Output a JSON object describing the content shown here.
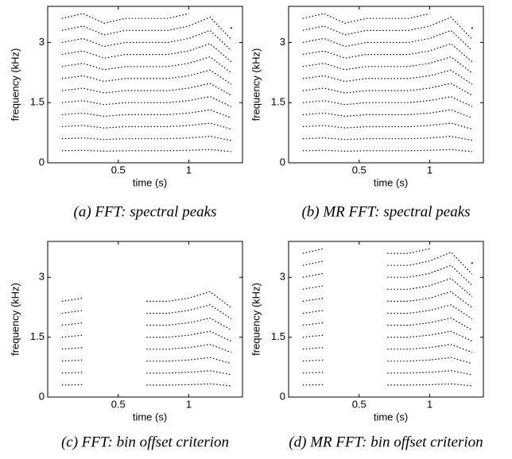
{
  "chart_data": [
    {
      "type": "line",
      "caption": "(a) FFT: spectral peaks",
      "x_label": "time (s)",
      "y_label": "frequency (kHz)",
      "color": "#000000",
      "line_style": "dotted",
      "x": [
        0.1,
        0.25,
        0.4,
        0.55,
        0.7,
        0.85,
        1.0,
        1.15,
        1.3
      ],
      "xlim": [
        0,
        1.38
      ],
      "ylim": [
        0,
        3.9
      ],
      "xticks": [
        0.5,
        1
      ],
      "yticks": [
        0,
        1.5,
        3
      ],
      "series": [
        {
          "values": [
            0.3,
            0.31,
            0.29,
            0.3,
            0.3,
            0.3,
            0.31,
            0.33,
            0.28
          ]
        },
        {
          "values": [
            0.6,
            0.62,
            0.58,
            0.6,
            0.6,
            0.6,
            0.62,
            0.66,
            0.56
          ]
        },
        {
          "values": [
            0.9,
            0.93,
            0.87,
            0.9,
            0.9,
            0.9,
            0.93,
            0.99,
            0.84
          ]
        },
        {
          "values": [
            1.2,
            1.24,
            1.16,
            1.2,
            1.2,
            1.2,
            1.24,
            1.32,
            1.12
          ]
        },
        {
          "values": [
            1.5,
            1.55,
            1.45,
            1.5,
            1.5,
            1.5,
            1.55,
            1.65,
            1.4
          ]
        },
        {
          "values": [
            1.8,
            1.86,
            1.74,
            1.8,
            1.8,
            1.8,
            1.86,
            1.98,
            1.68
          ]
        },
        {
          "values": [
            2.1,
            2.17,
            2.03,
            2.1,
            2.1,
            2.1,
            2.17,
            2.31,
            1.96
          ]
        },
        {
          "values": [
            2.4,
            2.48,
            2.32,
            2.4,
            2.4,
            2.4,
            2.48,
            2.64,
            2.24
          ]
        },
        {
          "values": [
            2.7,
            2.79,
            2.61,
            2.7,
            2.7,
            2.7,
            2.79,
            2.97,
            2.52
          ]
        },
        {
          "values": [
            3.0,
            3.1,
            2.9,
            3.0,
            3.0,
            3.0,
            3.1,
            3.3,
            2.8
          ]
        },
        {
          "values": [
            3.3,
            3.41,
            3.19,
            3.3,
            3.3,
            3.3,
            3.41,
            3.63,
            3.08
          ]
        },
        {
          "values": [
            3.6,
            3.72,
            3.48,
            3.6,
            3.6,
            3.6,
            3.72,
            null,
            3.36
          ]
        }
      ]
    },
    {
      "type": "line",
      "caption": "(b) MR FFT: spectral peaks",
      "x_label": "time (s)",
      "y_label": "frequency (kHz)",
      "color": "#000000",
      "line_style": "dotted",
      "x": [
        0.1,
        0.25,
        0.4,
        0.55,
        0.7,
        0.85,
        1.0,
        1.15,
        1.3
      ],
      "xlim": [
        0,
        1.38
      ],
      "ylim": [
        0,
        3.9
      ],
      "xticks": [
        0.5,
        1
      ],
      "yticks": [
        0,
        1.5,
        3
      ],
      "series": [
        {
          "values": [
            0.3,
            0.31,
            0.29,
            0.3,
            0.3,
            0.3,
            0.31,
            0.33,
            0.28
          ]
        },
        {
          "values": [
            0.6,
            0.62,
            0.58,
            0.6,
            0.6,
            0.6,
            0.62,
            0.66,
            0.56
          ]
        },
        {
          "values": [
            0.9,
            0.93,
            0.87,
            0.9,
            0.9,
            0.9,
            0.93,
            0.99,
            0.84
          ]
        },
        {
          "values": [
            1.2,
            1.24,
            1.16,
            1.2,
            1.2,
            1.2,
            1.24,
            1.32,
            1.12
          ]
        },
        {
          "values": [
            1.5,
            1.55,
            1.45,
            1.5,
            1.5,
            1.5,
            1.55,
            1.65,
            1.4
          ]
        },
        {
          "values": [
            1.8,
            1.86,
            1.74,
            1.8,
            1.8,
            1.8,
            1.86,
            1.98,
            1.68
          ]
        },
        {
          "values": [
            2.1,
            2.17,
            2.03,
            2.1,
            2.1,
            2.1,
            2.17,
            2.31,
            1.96
          ]
        },
        {
          "values": [
            2.4,
            2.48,
            2.32,
            2.4,
            2.4,
            2.4,
            2.48,
            2.64,
            2.24
          ]
        },
        {
          "values": [
            2.7,
            2.79,
            2.61,
            2.7,
            2.7,
            2.7,
            2.79,
            2.97,
            2.52
          ]
        },
        {
          "values": [
            3.0,
            3.1,
            2.9,
            3.0,
            3.0,
            3.0,
            3.1,
            3.3,
            2.8
          ]
        },
        {
          "values": [
            3.3,
            3.41,
            3.19,
            3.3,
            3.3,
            3.3,
            3.41,
            3.63,
            3.08
          ]
        },
        {
          "values": [
            3.6,
            3.72,
            3.48,
            3.6,
            3.6,
            3.6,
            3.72,
            null,
            3.36
          ]
        }
      ]
    },
    {
      "type": "line",
      "caption": "(c) FFT: bin offset criterion",
      "x_label": "time (s)",
      "y_label": "frequency (kHz)",
      "color": "#000000",
      "line_style": "dotted",
      "x": [
        0.1,
        0.25,
        0.4,
        0.55,
        0.7,
        0.85,
        1.0,
        1.15,
        1.3
      ],
      "xlim": [
        0,
        1.38
      ],
      "ylim": [
        0,
        3.9
      ],
      "xticks": [
        0.5,
        1
      ],
      "yticks": [
        0,
        1.5,
        3
      ],
      "series": [
        {
          "values": [
            0.3,
            0.31,
            null,
            null,
            0.3,
            0.3,
            0.31,
            0.33,
            0.28
          ]
        },
        {
          "values": [
            0.6,
            0.62,
            null,
            null,
            0.6,
            0.6,
            0.62,
            0.66,
            0.56
          ]
        },
        {
          "values": [
            0.9,
            0.93,
            null,
            null,
            0.9,
            0.9,
            0.93,
            0.99,
            0.84
          ]
        },
        {
          "values": [
            1.2,
            1.24,
            null,
            null,
            1.2,
            1.2,
            1.24,
            1.32,
            1.12
          ]
        },
        {
          "values": [
            1.5,
            1.55,
            null,
            null,
            1.5,
            1.5,
            1.55,
            1.65,
            1.4
          ]
        },
        {
          "values": [
            1.8,
            1.86,
            null,
            null,
            1.8,
            1.8,
            1.86,
            1.98,
            1.68
          ]
        },
        {
          "values": [
            2.1,
            2.17,
            null,
            null,
            2.1,
            2.1,
            2.17,
            2.31,
            1.96
          ]
        },
        {
          "values": [
            2.4,
            2.48,
            null,
            null,
            2.4,
            2.4,
            2.48,
            2.64,
            2.24
          ]
        }
      ]
    },
    {
      "type": "line",
      "caption": "(d) MR FFT: bin offset criterion",
      "x_label": "time (s)",
      "y_label": "frequency (kHz)",
      "color": "#000000",
      "line_style": "dotted",
      "x": [
        0.1,
        0.25,
        0.4,
        0.55,
        0.7,
        0.85,
        1.0,
        1.15,
        1.3
      ],
      "xlim": [
        0,
        1.38
      ],
      "ylim": [
        0,
        3.9
      ],
      "xticks": [
        0.5,
        1
      ],
      "yticks": [
        0,
        1.5,
        3
      ],
      "series": [
        {
          "values": [
            0.3,
            0.31,
            null,
            null,
            0.3,
            0.3,
            0.31,
            0.33,
            0.28
          ]
        },
        {
          "values": [
            0.6,
            0.62,
            null,
            null,
            0.6,
            0.6,
            0.62,
            0.66,
            0.56
          ]
        },
        {
          "values": [
            0.9,
            0.93,
            null,
            null,
            0.9,
            0.9,
            0.93,
            0.99,
            0.84
          ]
        },
        {
          "values": [
            1.2,
            1.24,
            null,
            null,
            1.2,
            1.2,
            1.24,
            1.32,
            1.12
          ]
        },
        {
          "values": [
            1.5,
            1.55,
            null,
            null,
            1.5,
            1.5,
            1.55,
            1.65,
            1.4
          ]
        },
        {
          "values": [
            1.8,
            1.86,
            null,
            null,
            1.8,
            1.8,
            1.86,
            1.98,
            1.68
          ]
        },
        {
          "values": [
            2.1,
            2.17,
            null,
            null,
            2.1,
            2.1,
            2.17,
            2.31,
            1.96
          ]
        },
        {
          "values": [
            2.4,
            2.48,
            null,
            null,
            2.4,
            2.4,
            2.48,
            2.64,
            2.24
          ]
        },
        {
          "values": [
            2.7,
            2.79,
            null,
            null,
            2.7,
            2.7,
            2.79,
            2.97,
            2.52
          ]
        },
        {
          "values": [
            3.0,
            3.1,
            null,
            null,
            3.0,
            3.0,
            3.1,
            3.3,
            2.8
          ]
        },
        {
          "values": [
            3.3,
            3.41,
            null,
            null,
            3.3,
            3.3,
            3.41,
            3.63,
            3.08
          ]
        },
        {
          "values": [
            3.6,
            3.72,
            null,
            null,
            3.6,
            3.6,
            3.72,
            null,
            3.36
          ]
        }
      ]
    }
  ]
}
